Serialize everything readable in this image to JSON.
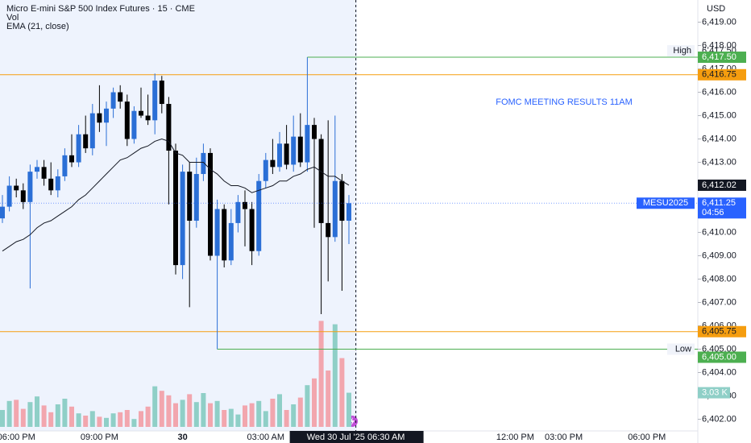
{
  "chart_data": {
    "type": "candlestick",
    "title": "Micro E-mini S&P 500 Index Futures · 15 · CME",
    "currency": "USD",
    "annotations": [
      "FOMC MEETING RESULTS 11AM"
    ],
    "categories": [
      null,
      null,
      "06:00 PM",
      null,
      null,
      null,
      null,
      null,
      null,
      null,
      null,
      null,
      null,
      null,
      "09:00 PM",
      null,
      null,
      null,
      null,
      null,
      null,
      null,
      null,
      null,
      null,
      null,
      "30",
      null,
      null,
      null,
      null,
      null,
      null,
      null,
      null,
      null,
      null,
      null,
      "03:00 AM",
      null,
      null,
      null,
      null,
      null,
      null,
      null,
      null,
      null,
      null,
      null,
      null,
      "Wed 30 Jul '25   06:30 AM",
      null,
      null,
      null,
      null,
      null,
      null,
      null,
      null,
      null,
      null,
      null,
      null,
      null,
      null,
      null,
      null,
      null,
      null,
      null,
      null,
      null,
      null,
      "12:00 PM",
      null,
      null,
      null,
      null,
      null,
      null,
      "03:00 PM",
      null,
      null,
      null,
      null,
      null,
      null,
      null,
      null,
      null,
      null,
      null,
      "06:00 PM"
    ],
    "ylim": [
      6401.5,
      6419.95
    ],
    "yticks": [
      {
        "value": 6402,
        "label": "6,402.00"
      },
      {
        "value": 6403,
        "label": "6,403.00"
      },
      {
        "value": 6404,
        "label": "6,404.00"
      },
      {
        "value": 6405,
        "label": "6,405.00"
      },
      {
        "value": 6406,
        "label": "6,406.00"
      },
      {
        "value": 6407,
        "label": "6,407.00"
      },
      {
        "value": 6408,
        "label": "6,408.00"
      },
      {
        "value": 6409,
        "label": "6,409.00"
      },
      {
        "value": 6410,
        "label": "6,410.00"
      },
      {
        "value": 6411,
        "label": "6,411.00"
      },
      {
        "value": 6412,
        "label": "6,412.00"
      },
      {
        "value": 6413,
        "label": "6,413.00"
      },
      {
        "value": 6414,
        "label": "6,414.00"
      },
      {
        "value": 6415,
        "label": "6,415.00"
      },
      {
        "value": 6416,
        "label": "6,416.00"
      },
      {
        "value": 6417,
        "label": "6,417.00"
      },
      {
        "value": 6418,
        "label": "6,418.00"
      },
      {
        "value": 6419,
        "label": "6,419.00"
      }
    ],
    "series": [
      {
        "name": "MESU2025",
        "up_color": "#2b6fd6",
        "down_color": "#000000",
        "open": [
          6410.6,
          6411.1,
          6412.0,
          6411.8,
          6411.3,
          6412.6,
          6412.8,
          6412.3,
          6411.8,
          6412.4,
          6413.3,
          6413.0,
          6414.2,
          6413.6,
          6415.1,
          6414.7,
          6415.3,
          6416.0,
          6415.6,
          6414.0,
          6415.2,
          6415.0,
          6414.8,
          6416.5,
          6415.5,
          6413.5,
          6408.6,
          6412.6,
          6410.5,
          6412.5,
          6413.4,
          6409.0,
          6411.0,
          6408.8,
          6410.4,
          6411.3,
          6411.0,
          6409.2,
          6412.2,
          6413.1,
          6412.8,
          6413.8,
          6412.9,
          6414.1,
          6413.0,
          6414.6,
          6414.0,
          6410.4,
          6409.8,
          6412.2,
          6410.5,
          null,
          null,
          null,
          null,
          null,
          null,
          null,
          null,
          null,
          null,
          null,
          null,
          null,
          null,
          null,
          null,
          null,
          null,
          null,
          null,
          null,
          null,
          null,
          null,
          null,
          null,
          null,
          null,
          null,
          null,
          null,
          null,
          null,
          null,
          null,
          null,
          null,
          null,
          null,
          null,
          null,
          null,
          null
        ],
        "high": [
          6411.6,
          6412.4,
          6412.3,
          6412.1,
          6412.9,
          6413.1,
          6413.1,
          6413.0,
          6412.7,
          6413.6,
          6414.2,
          6414.6,
          6415.0,
          6415.5,
          6416.3,
          6415.6,
          6416.2,
          6416.3,
          6415.9,
          6415.4,
          6416.2,
          6415.9,
          6416.8,
          6416.7,
          6415.8,
          6413.8,
          6412.9,
          6413.0,
          6413.2,
          6413.8,
          6413.6,
          6411.4,
          6411.2,
          6411.0,
          6411.6,
          6411.8,
          6411.3,
          6412.5,
          6413.4,
          6414.0,
          6414.3,
          6414.6,
          6415.0,
          6415.1,
          6417.5,
          6414.9,
          6414.2,
          6414.8,
          6415.0,
          6412.5,
          6411.6,
          null,
          null,
          null,
          null,
          null,
          null,
          null,
          null,
          null,
          null,
          null,
          null,
          null,
          null,
          null,
          null,
          null,
          null,
          null,
          null,
          null,
          null,
          null,
          null,
          null,
          null,
          null,
          null,
          null,
          null,
          null,
          null,
          null,
          null,
          null,
          null,
          null,
          null,
          null,
          null,
          null,
          null,
          null
        ],
        "low": [
          6410.4,
          6410.9,
          6411.5,
          6411.0,
          6407.6,
          6412.3,
          6412.0,
          6411.6,
          6411.5,
          6412.2,
          6412.8,
          6412.8,
          6413.4,
          6413.3,
          6414.3,
          6413.7,
          6414.9,
          6415.3,
          6413.7,
          6413.8,
          6414.9,
          6414.6,
          6414.2,
          6415.1,
          6411.2,
          6408.2,
          6408.0,
          6406.8,
          6410.2,
          6412.2,
          6408.8,
          6405.0,
          6408.5,
          6408.6,
          6410.0,
          6409.4,
          6408.6,
          6409.0,
          6411.9,
          6412.5,
          6412.6,
          6412.7,
          6412.6,
          6412.8,
          6412.6,
          6410.2,
          6406.5,
          6407.9,
          6409.6,
          6407.5,
          6409.5,
          null,
          null,
          null,
          null,
          null,
          null,
          null,
          null,
          null,
          null,
          null,
          null,
          null,
          null,
          null,
          null,
          null,
          null,
          null,
          null,
          null,
          null,
          null,
          null,
          null,
          null,
          null,
          null,
          null,
          null,
          null,
          null,
          null,
          null,
          null,
          null,
          null,
          null,
          null,
          null,
          null,
          null,
          null
        ],
        "close": [
          6411.1,
          6412.0,
          6411.8,
          6411.3,
          6412.6,
          6412.8,
          6412.3,
          6411.8,
          6412.4,
          6413.3,
          6413.0,
          6414.2,
          6413.6,
          6415.1,
          6414.7,
          6415.3,
          6416.0,
          6415.6,
          6414.0,
          6415.2,
          6415.0,
          6414.8,
          6416.5,
          6415.5,
          6413.5,
          6408.6,
          6412.6,
          6410.5,
          6412.5,
          6413.4,
          6409.0,
          6411.0,
          6408.8,
          6410.4,
          6411.3,
          6411.0,
          6409.2,
          6412.2,
          6413.1,
          6412.8,
          6413.8,
          6412.9,
          6414.1,
          6413.0,
          6414.6,
          6414.0,
          6410.4,
          6409.8,
          6412.2,
          6410.5,
          6411.25,
          null,
          null,
          null,
          null,
          null,
          null,
          null,
          null,
          null,
          null,
          null,
          null,
          null,
          null,
          null,
          null,
          null,
          null,
          null,
          null,
          null,
          null,
          null,
          null,
          null,
          null,
          null,
          null,
          null,
          null,
          null,
          null,
          null,
          null,
          null,
          null,
          null,
          null,
          null,
          null,
          null,
          null,
          null
        ],
        "current": {
          "label": "6,411.25",
          "countdown": "04:56",
          "color": "#2962ff"
        }
      },
      {
        "name": "Vol",
        "up_color": "#8fcfc7",
        "down_color": "#f2a6ae",
        "values": [
          1.5,
          2.3,
          2.4,
          1.6,
          2.2,
          2.7,
          1.9,
          1.3,
          2.0,
          2.5,
          1.8,
          1.2,
          1.0,
          1.4,
          0.9,
          0.8,
          1.2,
          1.3,
          1.5,
          0.7,
          1.4,
          1.8,
          3.6,
          3.2,
          2.8,
          2.1,
          2.4,
          2.9,
          2.2,
          3.0,
          2.1,
          2.3,
          1.5,
          1.6,
          1.1,
          1.9,
          2.1,
          2.3,
          1.4,
          2.5,
          2.9,
          1.5,
          2.0,
          2.6,
          3.7,
          4.3,
          9.4,
          5.0,
          9.1,
          6.1,
          3.03,
          null,
          null,
          null,
          null,
          null,
          null,
          null,
          null,
          null,
          null,
          null,
          null,
          null,
          null,
          null,
          null,
          null,
          null,
          null,
          null,
          null,
          null,
          null,
          null,
          null,
          null,
          null,
          null,
          null,
          null,
          null,
          null,
          null,
          null,
          null,
          null,
          null,
          null,
          null,
          null,
          null,
          null,
          null
        ],
        "value_labels": [
          null,
          null,
          null,
          null,
          null,
          null,
          null,
          null,
          null,
          null,
          null,
          null,
          null,
          null,
          null,
          null,
          null,
          null,
          null,
          null,
          null,
          null,
          null,
          null,
          null,
          null,
          null,
          null,
          null,
          null,
          null,
          null,
          null,
          null,
          null,
          null,
          null,
          null,
          null,
          null,
          null,
          null,
          null,
          null,
          null,
          null,
          null,
          null,
          null,
          null,
          "3.03 K",
          null,
          null,
          null,
          null,
          null,
          null,
          null,
          null,
          null,
          null,
          null,
          null,
          null,
          null,
          null,
          null,
          null,
          null,
          null,
          null,
          null,
          null,
          null,
          null,
          null,
          null,
          null,
          null,
          null,
          null,
          null,
          null,
          null,
          null,
          null,
          null,
          null,
          null,
          null,
          null,
          null,
          null,
          null
        ]
      },
      {
        "name": "EMA (21, close)",
        "color": "#131722",
        "values": [
          6409.2,
          6409.4,
          6409.6,
          6409.7,
          6409.9,
          6410.2,
          6410.4,
          6410.5,
          6410.7,
          6410.9,
          6411.1,
          6411.4,
          6411.6,
          6411.9,
          6412.2,
          6412.5,
          6412.8,
          6413.1,
          6413.2,
          6413.4,
          6413.6,
          6413.7,
          6413.9,
          6414.0,
          6413.9,
          6413.4,
          6413.3,
          6413.0,
          6413.0,
          6413.0,
          6412.7,
          6412.5,
          6412.2,
          6412.0,
          6412.0,
          6411.9,
          6411.7,
          6411.8,
          6411.9,
          6412.0,
          6412.2,
          6412.2,
          6412.4,
          6412.5,
          6412.7,
          6412.8,
          6412.6,
          6412.4,
          6412.4,
          6412.2,
          6412.02,
          null,
          null,
          null,
          null,
          null,
          null,
          null,
          null,
          null,
          null,
          null,
          null,
          null,
          null,
          null,
          null,
          null,
          null,
          null,
          null,
          null,
          null,
          null,
          null,
          null,
          null,
          null,
          null,
          null,
          null,
          null,
          null,
          null,
          null,
          null,
          null,
          null,
          null,
          null,
          null,
          null,
          null,
          null
        ],
        "value_labels": [
          null,
          null,
          null,
          null,
          null,
          null,
          null,
          null,
          null,
          null,
          null,
          null,
          null,
          null,
          null,
          null,
          null,
          null,
          null,
          null,
          null,
          null,
          null,
          null,
          null,
          null,
          null,
          null,
          null,
          null,
          null,
          null,
          null,
          null,
          null,
          null,
          null,
          null,
          null,
          null,
          null,
          null,
          null,
          null,
          null,
          null,
          null,
          null,
          null,
          null,
          "6,412.02",
          null,
          null,
          null,
          null,
          null,
          null,
          null,
          null,
          null,
          null,
          null,
          null,
          null,
          null,
          null,
          null,
          null,
          null,
          null,
          null,
          null,
          null,
          null,
          null,
          null,
          null,
          null,
          null,
          null,
          null,
          null,
          null,
          null,
          null,
          null,
          null,
          null,
          null,
          null,
          null,
          null,
          null,
          null
        ]
      }
    ],
    "price_lines": [
      {
        "value": 6416.75,
        "label": "6,416.75",
        "color": "#f59d0f"
      },
      {
        "value": 6405.75,
        "label": "6,405.75",
        "color": "#f59d0f"
      }
    ],
    "high": {
      "name": "High",
      "value": 6417.5,
      "label": "6,417.50",
      "color": "#4caf50"
    },
    "low": {
      "name": "Low",
      "value": 6405.0,
      "label": "6,405.00",
      "color": "#4caf50"
    }
  }
}
